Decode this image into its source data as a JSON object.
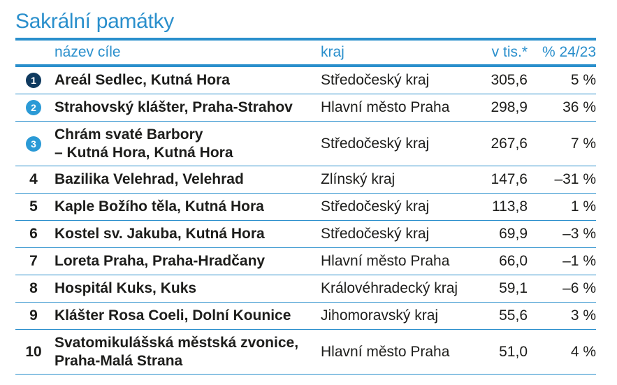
{
  "title": "Sakrální památky",
  "colors": {
    "accent": "#2a8fcc",
    "rank1": "#0f3a5f",
    "rank23": "#2b9ad6"
  },
  "headers": {
    "name": "název cíle",
    "region": "kraj",
    "value": "v tis.*",
    "change": "% 24/23"
  },
  "rows": [
    {
      "rank": "1",
      "name": "Areál Sedlec, Kutná Hora",
      "region": "Středočeský kraj",
      "value": "305,6",
      "change": "5 %"
    },
    {
      "rank": "2",
      "name": "Strahovský klášter, Praha-Strahov",
      "region": "Hlavní město Praha",
      "value": "298,9",
      "change": "36 %"
    },
    {
      "rank": "3",
      "name": "Chrám svaté Barbory",
      "name2": "– Kutná Hora, Kutná Hora",
      "region": "Středočeský kraj",
      "value": "267,6",
      "change": "7 %"
    },
    {
      "rank": "4",
      "name": "Bazilika Velehrad, Velehrad",
      "region": "Zlínský kraj",
      "value": "147,6",
      "change": "–31 %"
    },
    {
      "rank": "5",
      "name": "Kaple Božího těla, Kutná Hora",
      "region": "Středočeský kraj",
      "value": "113,8",
      "change": "1 %"
    },
    {
      "rank": "6",
      "name": "Kostel sv. Jakuba, Kutná Hora",
      "region": "Středočeský kraj",
      "value": "69,9",
      "change": "–3 %"
    },
    {
      "rank": "7",
      "name": "Loreta Praha, Praha-Hradčany",
      "region": "Hlavní město Praha",
      "value": "66,0",
      "change": "–1 %"
    },
    {
      "rank": "8",
      "name": "Hospitál Kuks, Kuks",
      "region": "Královéhradecký kraj",
      "value": "59,1",
      "change": "–6 %"
    },
    {
      "rank": "9",
      "name": "Klášter Rosa Coeli, Dolní Kounice",
      "region": "Jihomoravský kraj",
      "value": "55,6",
      "change": "3 %"
    },
    {
      "rank": "10",
      "name": "Svatomikulášská městská zvonice,",
      "name2": "Praha-Malá Strana",
      "region": "Hlavní město Praha",
      "value": "51,0",
      "change": "4 %"
    }
  ]
}
